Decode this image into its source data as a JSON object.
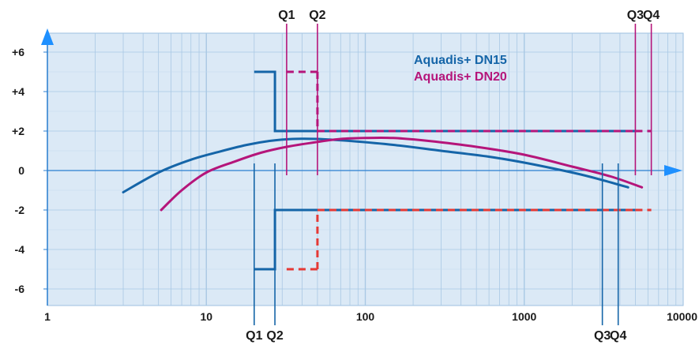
{
  "chart_data": {
    "type": "line",
    "title": "",
    "xlabel": "",
    "ylabel": "",
    "x_scale": "log",
    "xlim": [
      1,
      10000
    ],
    "ylim": [
      -7,
      7
    ],
    "grid": true,
    "legend_placement": "top-center",
    "x_tick_labels": [
      "1",
      "10",
      "100",
      "1000",
      "10000"
    ],
    "y_ticks": [
      {
        "value": 6,
        "label": "+6"
      },
      {
        "value": 4,
        "label": "+4"
      },
      {
        "value": 2,
        "label": "+2"
      },
      {
        "value": 0,
        "label": "0"
      },
      {
        "value": -2,
        "label": "-2"
      },
      {
        "value": -4,
        "label": "-4"
      },
      {
        "value": -6,
        "label": "-6"
      }
    ],
    "series": [
      {
        "name": "Aquadis+ DN15",
        "color": "#1565a8",
        "x": [
          3,
          5,
          8,
          12,
          18,
          25,
          35,
          50,
          80,
          150,
          300,
          600,
          1000,
          2000,
          3000,
          4500
        ],
        "y": [
          -1.1,
          -0.1,
          0.55,
          0.95,
          1.3,
          1.5,
          1.6,
          1.6,
          1.5,
          1.3,
          1.0,
          0.7,
          0.4,
          -0.1,
          -0.45,
          -0.85
        ]
      },
      {
        "name": "Aquadis+ DN20",
        "color": "#b5157a",
        "x": [
          5.2,
          7,
          10,
          15,
          22,
          32,
          50,
          70,
          100,
          150,
          250,
          500,
          1000,
          2000,
          3500,
          5500
        ],
        "y": [
          -2.0,
          -1.0,
          -0.1,
          0.45,
          0.9,
          1.2,
          1.45,
          1.6,
          1.65,
          1.65,
          1.5,
          1.2,
          0.8,
          0.2,
          -0.3,
          -0.85
        ]
      }
    ],
    "error_limits": [
      {
        "series": "Aquadis+ DN15",
        "color": "#1565a8",
        "upper": [
          [
            20,
            5
          ],
          [
            27,
            5
          ],
          [
            27,
            2
          ],
          [
            5000,
            2
          ]
        ],
        "lower": [
          [
            20,
            -5
          ],
          [
            27,
            -5
          ],
          [
            27,
            -2
          ],
          [
            5000,
            -2
          ]
        ]
      },
      {
        "series": "Aquadis+ DN20",
        "color": "#e53935",
        "upper_color": "#b5157a",
        "upper": [
          [
            32,
            5
          ],
          [
            50,
            5
          ],
          [
            50,
            2
          ],
          [
            5000,
            2
          ],
          [
            6300,
            2
          ]
        ],
        "lower": [
          [
            32,
            -5
          ],
          [
            50,
            -5
          ],
          [
            50,
            -2
          ],
          [
            5000,
            -2
          ],
          [
            6300,
            -2
          ]
        ]
      }
    ],
    "flow_markers": [
      {
        "label": "Q1",
        "x": 20,
        "color": "#1565a8",
        "position": "bottom"
      },
      {
        "label": "Q2",
        "x": 27,
        "color": "#1565a8",
        "position": "bottom"
      },
      {
        "label": "Q3",
        "x": 3100,
        "color": "#1565a8",
        "position": "bottom"
      },
      {
        "label": "Q4",
        "x": 3900,
        "color": "#1565a8",
        "position": "bottom"
      },
      {
        "label": "Q1",
        "x": 32,
        "color": "#b5157a",
        "position": "top"
      },
      {
        "label": "Q2",
        "x": 50,
        "color": "#b5157a",
        "position": "top"
      },
      {
        "label": "Q3",
        "x": 5000,
        "color": "#b5157a",
        "position": "top"
      },
      {
        "label": "Q4",
        "x": 6300,
        "color": "#b5157a",
        "position": "top"
      }
    ]
  }
}
